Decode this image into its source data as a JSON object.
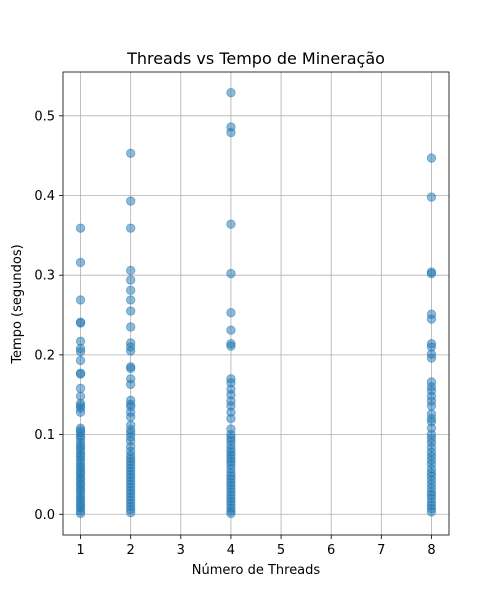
{
  "chart_data": {
    "type": "scatter",
    "title": "Threads vs Tempo de Mineração",
    "xlabel": "Número de Threads",
    "ylabel": "Tempo (segundos)",
    "xlim": [
      0.65,
      8.35
    ],
    "ylim": [
      -0.026,
      0.555
    ],
    "x_ticks": [
      1,
      2,
      3,
      4,
      5,
      6,
      7,
      8
    ],
    "y_ticks": [
      0.0,
      0.1,
      0.2,
      0.3,
      0.4,
      0.5
    ],
    "y_tick_labels": [
      "0.0",
      "0.1",
      "0.2",
      "0.3",
      "0.4",
      "0.5"
    ],
    "grid": true,
    "marker_color": "#1f77b4",
    "marker_alpha": 0.5,
    "series": [
      {
        "x": 1,
        "y": [
          0.359,
          0.316,
          0.269,
          0.241,
          0.24,
          0.217,
          0.208,
          0.204,
          0.193,
          0.177,
          0.176,
          0.158,
          0.148,
          0.139,
          0.136,
          0.133,
          0.128,
          0.108,
          0.105,
          0.102,
          0.098,
          0.095,
          0.09,
          0.086,
          0.083,
          0.079,
          0.075,
          0.072,
          0.068,
          0.064,
          0.06,
          0.057,
          0.053,
          0.05,
          0.046,
          0.043,
          0.039,
          0.036,
          0.032,
          0.029,
          0.025,
          0.021,
          0.018,
          0.014,
          0.011,
          0.008,
          0.004,
          0.001
        ]
      },
      {
        "x": 2,
        "y": [
          0.453,
          0.393,
          0.359,
          0.306,
          0.294,
          0.281,
          0.269,
          0.255,
          0.235,
          0.215,
          0.21,
          0.205,
          0.185,
          0.183,
          0.17,
          0.163,
          0.143,
          0.138,
          0.135,
          0.128,
          0.122,
          0.112,
          0.106,
          0.102,
          0.097,
          0.092,
          0.085,
          0.079,
          0.074,
          0.07,
          0.066,
          0.062,
          0.058,
          0.054,
          0.05,
          0.046,
          0.042,
          0.038,
          0.034,
          0.03,
          0.026,
          0.022,
          0.018,
          0.014,
          0.01,
          0.006,
          0.002
        ]
      },
      {
        "x": 4,
        "y": [
          0.529,
          0.486,
          0.479,
          0.364,
          0.302,
          0.253,
          0.231,
          0.214,
          0.211,
          0.17,
          0.165,
          0.157,
          0.15,
          0.142,
          0.136,
          0.128,
          0.12,
          0.107,
          0.1,
          0.096,
          0.092,
          0.087,
          0.082,
          0.078,
          0.074,
          0.07,
          0.066,
          0.062,
          0.057,
          0.052,
          0.048,
          0.044,
          0.04,
          0.036,
          0.032,
          0.028,
          0.024,
          0.02,
          0.016,
          0.012,
          0.008,
          0.004,
          0.001
        ]
      },
      {
        "x": 8,
        "y": [
          0.447,
          0.398,
          0.304,
          0.302,
          0.251,
          0.245,
          0.214,
          0.21,
          0.201,
          0.196,
          0.166,
          0.16,
          0.155,
          0.148,
          0.142,
          0.136,
          0.126,
          0.12,
          0.116,
          0.108,
          0.1,
          0.095,
          0.09,
          0.084,
          0.078,
          0.073,
          0.068,
          0.063,
          0.057,
          0.052,
          0.048,
          0.043,
          0.038,
          0.033,
          0.028,
          0.024,
          0.02,
          0.015,
          0.011,
          0.007,
          0.003
        ]
      }
    ]
  }
}
